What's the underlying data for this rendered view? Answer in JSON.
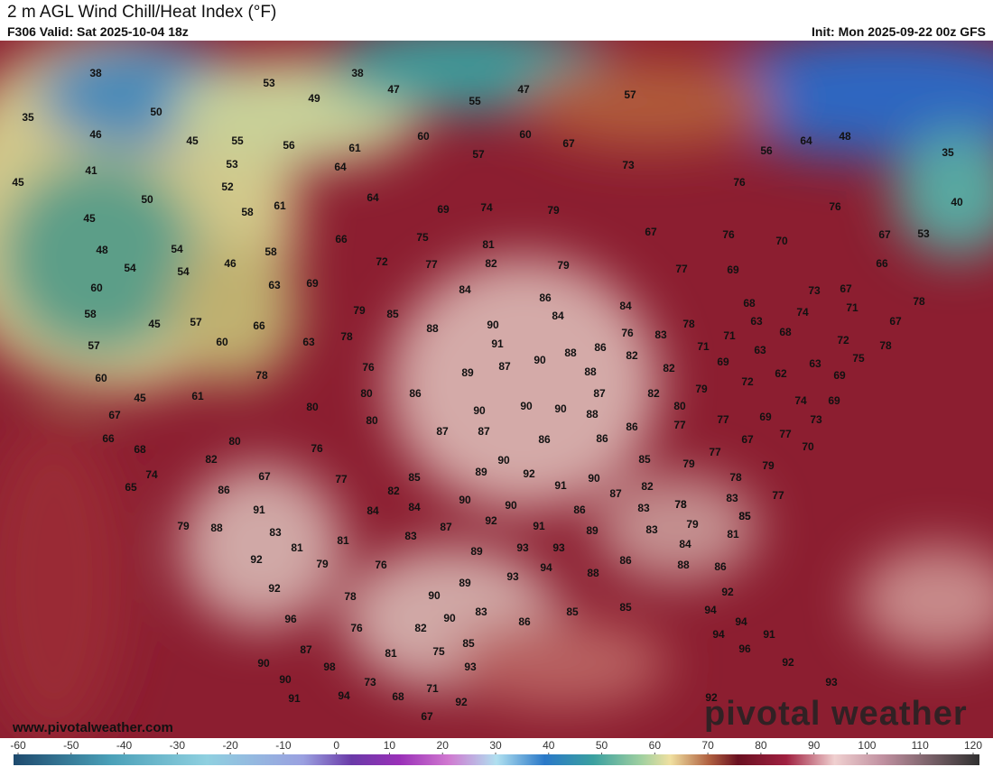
{
  "header": {
    "title": "2 m AGL Wind Chill/Heat Index (°F)",
    "valid": "F306 Valid: Sat 2025-10-04 18z",
    "init": "Init: Mon 2025-09-22 00z GFS"
  },
  "map": {
    "labels": [
      38,
      53,
      38,
      49,
      47,
      47,
      55,
      57,
      35,
      50,
      46,
      45,
      55,
      56,
      61,
      60,
      60,
      67,
      64,
      48,
      35,
      56,
      57,
      53,
      64,
      73,
      41,
      45,
      52,
      50,
      64,
      76,
      61,
      58,
      69,
      74,
      79,
      76,
      40,
      45,
      66,
      75,
      81,
      67,
      76,
      70,
      67,
      53,
      48,
      54,
      58,
      54,
      54,
      46,
      72,
      77,
      82,
      79,
      77,
      69,
      66,
      60,
      63,
      69,
      84,
      73,
      67,
      78,
      86,
      84,
      68,
      71,
      58,
      45,
      57,
      66,
      79,
      85,
      88,
      90,
      84,
      63,
      74,
      68,
      67,
      57,
      60,
      63,
      78,
      91,
      76,
      83,
      78,
      71,
      71,
      72,
      78,
      86,
      88,
      82,
      63,
      69,
      75,
      63,
      60,
      78,
      76,
      89,
      87,
      90,
      88,
      82,
      62,
      69,
      72,
      45,
      61,
      80,
      86,
      87,
      82,
      79,
      74,
      69,
      67,
      80,
      90,
      90,
      90,
      88,
      80,
      80,
      87,
      87,
      86,
      77,
      77,
      69,
      73,
      66,
      80,
      86,
      86,
      67,
      77,
      70,
      68,
      82,
      76,
      90,
      85,
      77,
      79,
      79,
      74,
      67,
      77,
      85,
      89,
      92,
      90,
      78,
      65,
      86,
      82,
      91,
      87,
      82,
      78,
      85,
      90,
      90,
      83,
      78,
      77,
      91,
      84,
      84,
      86,
      83,
      85,
      79,
      88,
      83,
      87,
      92,
      91,
      89,
      83,
      79,
      81,
      83,
      81,
      81,
      93,
      93,
      89,
      84,
      92,
      79,
      76,
      94,
      88,
      86,
      88,
      86,
      93,
      89,
      92,
      78,
      90,
      92,
      96,
      90,
      83,
      86,
      85,
      85,
      94,
      94,
      76,
      82,
      94,
      91,
      87,
      85,
      75,
      81,
      96,
      90,
      98,
      93,
      92,
      90,
      73,
      71,
      93,
      91,
      94,
      68,
      92,
      92,
      67
    ]
  },
  "watermark": "pivotal weather",
  "footer": {
    "url": "www.pivotalweather.com"
  },
  "colorbar": {
    "ticks": [
      -60,
      -50,
      -40,
      -30,
      -20,
      -10,
      0,
      10,
      20,
      30,
      40,
      50,
      60,
      70,
      80,
      90,
      100,
      110,
      120
    ]
  }
}
